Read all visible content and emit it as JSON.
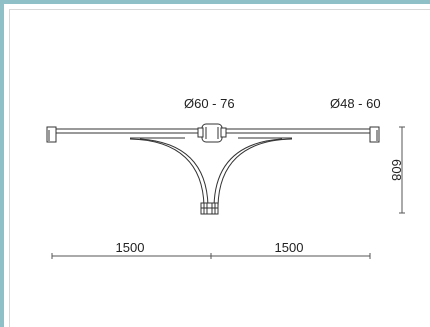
{
  "drawing": {
    "dia_center_label": "Ø60 - 76",
    "dia_end_label": "Ø48 - 60",
    "height_label": "608",
    "span_left_label": "1500",
    "span_right_label": "1500"
  },
  "colors": {
    "frame": "#8fbfc7",
    "line": "#333333"
  }
}
